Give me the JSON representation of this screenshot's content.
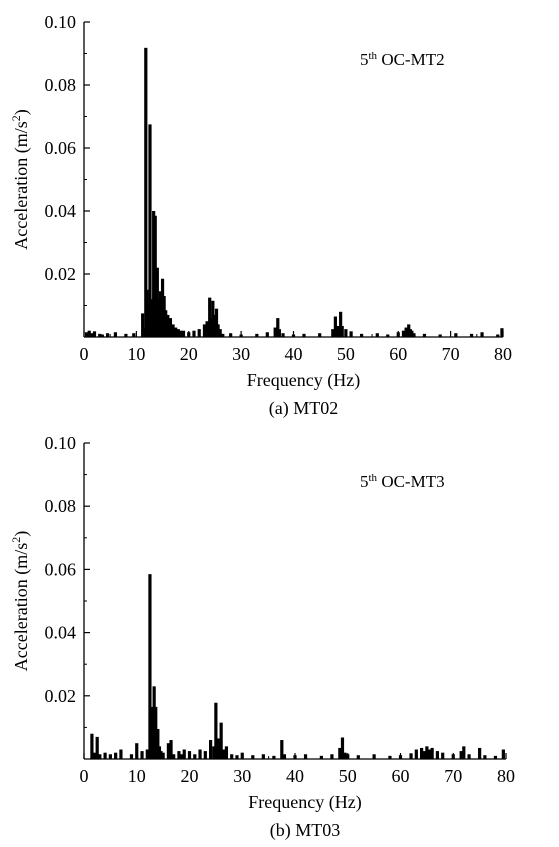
{
  "chart_data": [
    {
      "type": "bar",
      "panel": "a",
      "caption": "(a) MT02",
      "annotation": {
        "prefix": "5",
        "superscript": "th",
        "suffix": " OC-MT2"
      },
      "xlabel": "Frequency (Hz)",
      "ylabel": "Acceleration (m/s",
      "ylabel_superscript": "2",
      "ylabel_suffix": ")",
      "xlim": [
        0,
        80
      ],
      "ylim": [
        0,
        0.1
      ],
      "x_ticks": [
        0,
        10,
        20,
        30,
        40,
        50,
        60,
        70,
        80
      ],
      "y_ticks": [
        0.02,
        0.04,
        0.06,
        0.08,
        0.1
      ],
      "y_tick_labels": [
        "0.02",
        "0.04",
        "0.06",
        "0.08",
        "0.10"
      ],
      "grid": false,
      "series": [
        {
          "x": [
            0.5,
            1.0,
            1.5,
            2.0,
            3.0,
            3.5,
            4.5,
            6.0,
            8.0,
            9.5,
            11.2,
            11.5,
            11.8,
            12.0,
            12.3,
            12.6,
            13.0,
            13.3,
            13.6,
            14.0,
            14.3,
            14.6,
            15.0,
            15.3,
            15.6,
            16.0,
            16.5,
            17.0,
            17.5,
            18.0,
            18.5,
            19.0,
            20.0,
            21.0,
            22.0,
            23.0,
            23.5,
            24.0,
            24.3,
            24.6,
            25.0,
            25.3,
            25.6,
            26.0,
            26.5,
            28.0,
            30.0,
            33.0,
            35.0,
            36.5,
            37.0,
            37.3,
            38.0,
            40.0,
            42.0,
            45.0,
            47.5,
            48.0,
            48.5,
            49.0,
            49.3,
            50.0,
            51.0,
            53.0,
            56.0,
            58.0,
            60.0,
            61.0,
            61.5,
            62.0,
            62.3,
            62.6,
            63.0,
            65.0,
            68.0,
            71.0,
            74.0,
            76.0,
            79.0,
            79.8
          ],
          "y": [
            0.0015,
            0.002,
            0.0012,
            0.0018,
            0.001,
            0.0008,
            0.0012,
            0.0015,
            0.001,
            0.0012,
            0.0075,
            0.003,
            0.0918,
            0.015,
            0.01,
            0.0675,
            0.012,
            0.04,
            0.0385,
            0.022,
            0.012,
            0.0145,
            0.0185,
            0.013,
            0.0085,
            0.007,
            0.006,
            0.004,
            0.003,
            0.0025,
            0.002,
            0.002,
            0.0015,
            0.002,
            0.0025,
            0.004,
            0.005,
            0.0125,
            0.006,
            0.0115,
            0.007,
            0.009,
            0.004,
            0.0025,
            0.001,
            0.0012,
            0.0008,
            0.001,
            0.0015,
            0.003,
            0.006,
            0.0025,
            0.0012,
            0.0008,
            0.001,
            0.0012,
            0.0025,
            0.0065,
            0.0035,
            0.008,
            0.0035,
            0.0025,
            0.0018,
            0.001,
            0.0012,
            0.0008,
            0.0015,
            0.002,
            0.003,
            0.004,
            0.0025,
            0.002,
            0.0012,
            0.001,
            0.0008,
            0.0012,
            0.001,
            0.0015,
            0.0008,
            0.0028
          ]
        }
      ]
    },
    {
      "type": "bar",
      "panel": "b",
      "caption": "(b) MT03",
      "annotation": {
        "prefix": "5",
        "superscript": "th",
        "suffix": " OC-MT3"
      },
      "xlabel": "Frequency (Hz)",
      "ylabel": "Acceleration (m/s",
      "ylabel_superscript": "2",
      "ylabel_suffix": ")",
      "xlim": [
        0,
        80
      ],
      "ylim": [
        0,
        0.1
      ],
      "x_ticks": [
        0,
        10,
        20,
        30,
        40,
        50,
        60,
        70,
        80
      ],
      "y_ticks": [
        0.02,
        0.04,
        0.06,
        0.08,
        0.1
      ],
      "y_tick_labels": [
        "0.02",
        "0.04",
        "0.06",
        "0.08",
        "0.10"
      ],
      "grid": false,
      "series": [
        {
          "x": [
            1.5,
            2.0,
            2.5,
            3.0,
            4.0,
            5.0,
            6.0,
            7.0,
            9.0,
            10.0,
            11.0,
            12.0,
            12.5,
            13.0,
            13.3,
            13.6,
            14.0,
            14.3,
            14.6,
            15.0,
            16.0,
            16.5,
            17.0,
            18.0,
            18.5,
            19.0,
            20.0,
            21.0,
            22.0,
            23.0,
            24.0,
            24.6,
            25.0,
            25.5,
            26.0,
            26.5,
            27.0,
            28.0,
            29.0,
            30.0,
            32.0,
            34.0,
            36.0,
            37.5,
            38.0,
            40.0,
            42.0,
            45.0,
            47.0,
            48.5,
            49.0,
            49.5,
            50.0,
            52.0,
            55.0,
            58.0,
            60.0,
            62.0,
            63.0,
            64.0,
            64.5,
            65.0,
            65.5,
            66.0,
            67.0,
            68.0,
            70.0,
            71.5,
            72.0,
            73.0,
            75.0,
            76.0,
            78.0,
            79.5
          ],
          "y": [
            0.008,
            0.002,
            0.007,
            0.0015,
            0.002,
            0.0015,
            0.002,
            0.003,
            0.0015,
            0.005,
            0.0025,
            0.003,
            0.0585,
            0.0165,
            0.023,
            0.0165,
            0.0095,
            0.004,
            0.0025,
            0.002,
            0.005,
            0.006,
            0.0015,
            0.0025,
            0.0015,
            0.003,
            0.0025,
            0.0015,
            0.003,
            0.0025,
            0.006,
            0.004,
            0.0178,
            0.0065,
            0.0115,
            0.003,
            0.004,
            0.0015,
            0.0012,
            0.002,
            0.0012,
            0.0015,
            0.001,
            0.006,
            0.0015,
            0.0012,
            0.0015,
            0.001,
            0.0015,
            0.0035,
            0.0068,
            0.002,
            0.0015,
            0.0012,
            0.0015,
            0.001,
            0.0012,
            0.0018,
            0.003,
            0.0035,
            0.0025,
            0.004,
            0.003,
            0.0035,
            0.0025,
            0.002,
            0.0015,
            0.0025,
            0.004,
            0.0015,
            0.0035,
            0.0012,
            0.001,
            0.003
          ]
        }
      ]
    }
  ]
}
